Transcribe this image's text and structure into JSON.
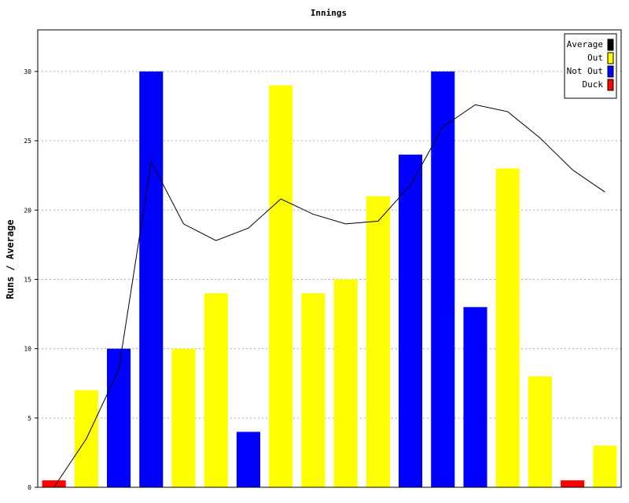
{
  "chart_data": {
    "type": "bar",
    "title": "Innings",
    "ylabel": "Runs / Average",
    "xlabel": "",
    "ylim": [
      0,
      33
    ],
    "yticks": [
      0,
      5,
      10,
      15,
      20,
      25,
      30
    ],
    "grid": true,
    "legend_position": "top-right",
    "legend": [
      {
        "name": "Average",
        "color": "#000000"
      },
      {
        "name": "Out",
        "color": "#ffff00"
      },
      {
        "name": "Not Out",
        "color": "#0000ff"
      },
      {
        "name": "Duck",
        "color": "#ff0000"
      }
    ],
    "innings": [
      {
        "runs": 0.5,
        "status": "Duck"
      },
      {
        "runs": 7,
        "status": "Out"
      },
      {
        "runs": 10,
        "status": "Not Out"
      },
      {
        "runs": 30,
        "status": "Not Out"
      },
      {
        "runs": 10,
        "status": "Out"
      },
      {
        "runs": 14,
        "status": "Out"
      },
      {
        "runs": 4,
        "status": "Not Out"
      },
      {
        "runs": 29,
        "status": "Out"
      },
      {
        "runs": 14,
        "status": "Out"
      },
      {
        "runs": 15,
        "status": "Out"
      },
      {
        "runs": 21,
        "status": "Out"
      },
      {
        "runs": 24,
        "status": "Not Out"
      },
      {
        "runs": 30,
        "status": "Not Out"
      },
      {
        "runs": 13,
        "status": "Not Out"
      },
      {
        "runs": 23,
        "status": "Out"
      },
      {
        "runs": 8,
        "status": "Out"
      },
      {
        "runs": 0.5,
        "status": "Duck"
      },
      {
        "runs": 3,
        "status": "Out"
      }
    ],
    "average": [
      0,
      3.5,
      8.5,
      23.5,
      19,
      17.8,
      18.7,
      20.8,
      19.7,
      19,
      19.2,
      21.8,
      26,
      27.6,
      27.1,
      25.2,
      22.9,
      21.3
    ]
  }
}
